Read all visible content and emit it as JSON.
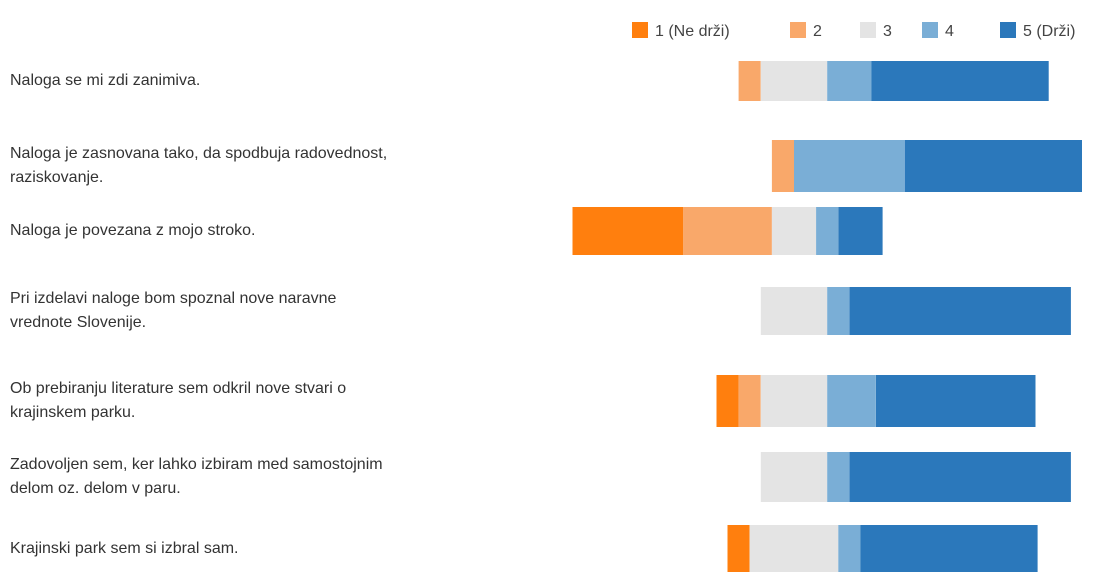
{
  "chart_data": {
    "type": "bar",
    "orientation": "horizontal",
    "stacked": "diverging",
    "legend_position": "top-right",
    "grid": false,
    "categories": [
      "Naloga se mi zdi zanimiva.",
      "Naloga je zasnovana tako, da spodbuja radovednost,\nraziskovanje.",
      "Naloga je povezana z mojo stroko.",
      "Pri izdelavi naloge bom spoznal nove naravne\nvrednote Slovenije.",
      "Ob prebiranju literature sem odkril nove stvari o\nkrajinskem parku.",
      "Zadovoljen sem, ker lahko izbiram med samostojnim\ndelom oz. delom v paru.",
      "Krajinski park sem si izbral sam."
    ],
    "series": [
      {
        "name": "1 (Ne drži)",
        "color": "#ff7f0e",
        "values": [
          0,
          0,
          25,
          0,
          5,
          0,
          5
        ]
      },
      {
        "name": "2",
        "color": "#f9a86a",
        "values": [
          5,
          5,
          20,
          0,
          5,
          0,
          0
        ]
      },
      {
        "name": "3",
        "color": "#e4e4e4",
        "values": [
          15,
          0,
          10,
          15,
          15,
          15,
          20
        ]
      },
      {
        "name": "4",
        "color": "#7aaed6",
        "values": [
          10,
          25,
          5,
          5,
          11,
          5,
          5
        ]
      },
      {
        "name": "5 (Drži)",
        "color": "#2b78bb",
        "values": [
          40,
          40,
          10,
          50,
          36,
          50,
          40
        ]
      }
    ]
  }
}
